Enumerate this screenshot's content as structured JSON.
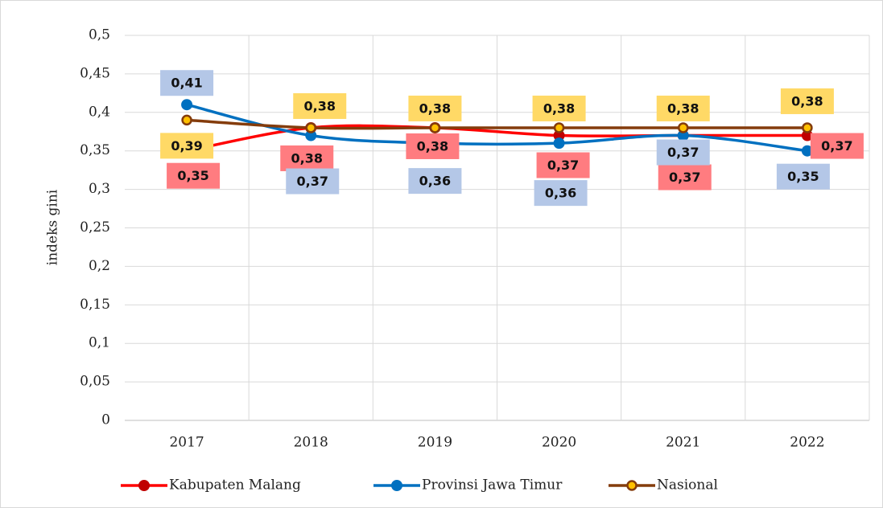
{
  "chart_data": {
    "type": "line",
    "y_label": "indeks gini",
    "categories": [
      "2017",
      "2018",
      "2019",
      "2020",
      "2021",
      "2022"
    ],
    "series": [
      {
        "name": "Kabupaten Malang",
        "color": "#ff0000",
        "marker_color": "#c00000",
        "label_color": "#ff7c80",
        "values": [
          0.35,
          0.38,
          0.38,
          0.37,
          0.37,
          0.37
        ],
        "value_labels": [
          "0,35",
          "0,38",
          "0,38",
          "0,37",
          "0,37",
          "0,37"
        ]
      },
      {
        "name": "Provinsi Jawa Timur",
        "color": "#0070c0",
        "marker_color": "#0070c0",
        "label_color": "#b4c7e7",
        "values": [
          0.41,
          0.37,
          0.36,
          0.36,
          0.37,
          0.35
        ],
        "value_labels": [
          "0,41",
          "0,37",
          "0,36",
          "0,36",
          "0,37",
          "0,35"
        ]
      },
      {
        "name": "Nasional",
        "color": "#843c0c",
        "marker_color": "#ffc000",
        "label_color": "#ffd966",
        "values": [
          0.39,
          0.38,
          0.38,
          0.38,
          0.38,
          0.38
        ],
        "value_labels": [
          "0,39",
          "0,38",
          "0,38",
          "0,38",
          "0,38",
          "0,38"
        ]
      }
    ],
    "ylim": [
      0,
      0.5
    ],
    "yticks": [
      0,
      {
        "value": 0.05,
        "label": "0,05"
      },
      {
        "value": 0.1,
        "label": "0,1"
      },
      {
        "value": 0.15,
        "label": "0,15"
      },
      {
        "value": 0.2,
        "label": "0,2"
      },
      {
        "value": 0.25,
        "label": "0,25"
      },
      {
        "value": 0.3,
        "label": "0,3"
      },
      {
        "value": 0.35,
        "label": "0,35"
      },
      {
        "value": 0.4,
        "label": "0,4"
      },
      {
        "value": 0.45,
        "label": "0,45"
      },
      {
        "value": 0.5,
        "label": "0,5"
      }
    ],
    "grid": true,
    "smooth": true,
    "legend": "bottom"
  }
}
